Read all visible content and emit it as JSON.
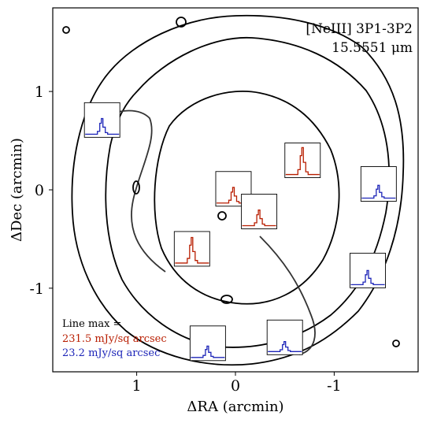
{
  "chart_data": {
    "type": "contour-map-with-spectra",
    "title_line1": "[NeIII] 3P1-3P2",
    "title_line2": "15.5551 μm",
    "xlabel": "ΔRA (arcmin)",
    "ylabel": "ΔDec (arcmin)",
    "xlim": [
      1.85,
      -1.85
    ],
    "ylim": [
      -1.85,
      1.85
    ],
    "x_direction": "inverted",
    "xticks": [
      1,
      0,
      -1
    ],
    "xtick_labels": [
      "1",
      "0",
      "-1"
    ],
    "yticks": [
      1,
      0,
      -1
    ],
    "ytick_labels": [
      "1",
      "0",
      "-1"
    ],
    "legend_heading": "Line max =",
    "max_values": [
      {
        "label": "231.5 mJy/sq arcsec",
        "color": "#b81d00",
        "value": 231.5
      },
      {
        "label": "23.2 mJy/sq arcsec",
        "color": "#1c24b8",
        "value": 23.2
      }
    ],
    "spectra": [
      {
        "ra": 1.35,
        "dec": 0.71,
        "color": "#1c24b8",
        "peak": 0.55
      },
      {
        "ra": 0.02,
        "dec": 0.01,
        "color": "#b81d00",
        "peak": 0.55
      },
      {
        "ra": -0.24,
        "dec": -0.22,
        "color": "#b81d00",
        "peak": 0.55
      },
      {
        "ra": -0.68,
        "dec": 0.3,
        "color": "#b81d00",
        "peak": 0.95
      },
      {
        "ra": -1.45,
        "dec": 0.06,
        "color": "#1c24b8",
        "peak": 0.45
      },
      {
        "ra": 0.44,
        "dec": -0.6,
        "color": "#b81d00",
        "peak": 0.9
      },
      {
        "ra": -1.34,
        "dec": -0.82,
        "color": "#1c24b8",
        "peak": 0.5
      },
      {
        "ra": 0.28,
        "dec": -1.56,
        "color": "#1c24b8",
        "peak": 0.4
      },
      {
        "ra": -0.5,
        "dec": -1.5,
        "color": "#1c24b8",
        "peak": 0.35
      }
    ]
  }
}
